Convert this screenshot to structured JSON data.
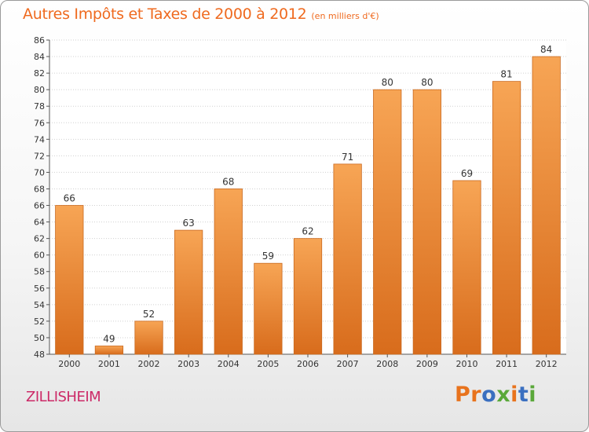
{
  "header": {
    "title": "Autres Impôts et Taxes de 2000 à 2012",
    "subtitle": "(en milliers d'€)"
  },
  "footer": {
    "commune": "ZILLISHEIM",
    "logo_text": "Proxiti"
  },
  "colors": {
    "title": "#ef6a1f",
    "commune": "#cc2a67",
    "bar_top": "#f7a555",
    "bar_bottom": "#d86c1c",
    "grid": "#d0d0d0",
    "logo_letters": [
      "#e8731d",
      "#e8731d",
      "#3a6fc0",
      "#5aa83a",
      "#e8731d",
      "#3a6fc0",
      "#5aa83a"
    ]
  },
  "chart_data": {
    "type": "bar",
    "title": "Autres Impôts et Taxes de 2000 à 2012",
    "subtitle": "(en milliers d'€)",
    "categories": [
      "2000",
      "2001",
      "2002",
      "2003",
      "2004",
      "2005",
      "2006",
      "2007",
      "2008",
      "2009",
      "2010",
      "2011",
      "2012"
    ],
    "values": [
      66,
      49,
      52,
      63,
      68,
      59,
      62,
      71,
      80,
      80,
      69,
      81,
      84
    ],
    "ylim": [
      48,
      86
    ],
    "ytick_step": 2,
    "grid": true,
    "xlabel": "",
    "ylabel": ""
  }
}
